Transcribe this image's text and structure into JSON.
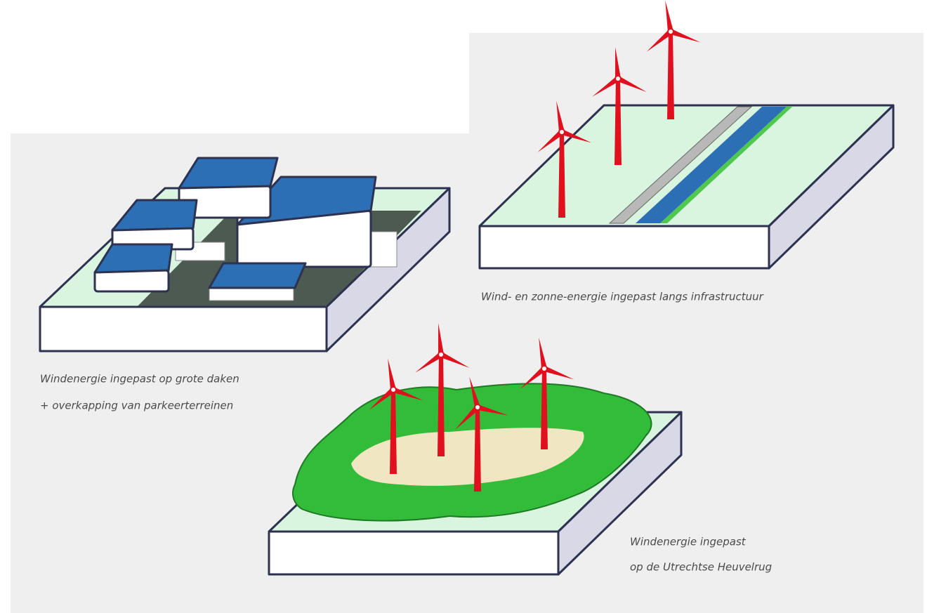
{
  "panels": [
    {
      "caption": [
        "Windenergie ingepast op grote daken",
        "+ overkapping van parkeerterreinen"
      ]
    },
    {
      "caption": [
        "Wind- en zonne-energie ingepast langs infrastructuur"
      ]
    },
    {
      "caption": [
        "Windenergie ingepast",
        "op de Utrechtse Heuvelrug"
      ]
    }
  ]
}
